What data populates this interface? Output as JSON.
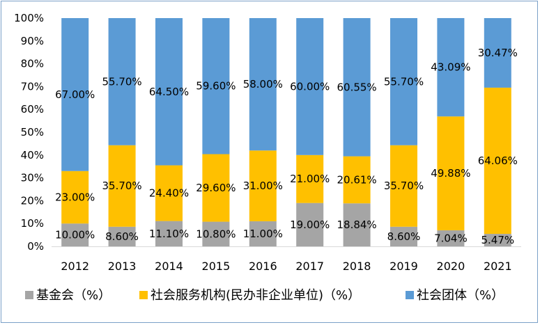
{
  "chart_data": {
    "type": "bar",
    "stacked": true,
    "percent_stacked": true,
    "categories": [
      "2012",
      "2013",
      "2014",
      "2015",
      "2016",
      "2017",
      "2018",
      "2019",
      "2020",
      "2021"
    ],
    "series": [
      {
        "name": "基金会（%）",
        "color": "#a5a5a5",
        "values": [
          10.0,
          8.6,
          11.1,
          10.8,
          11.0,
          19.0,
          18.84,
          8.6,
          7.04,
          5.47
        ],
        "labels": [
          "10.00%",
          "8.60%",
          "11.10%",
          "10.80%",
          "11.00%",
          "19.00%",
          "18.84%",
          "8.60%",
          "7.04%",
          "5.47%"
        ]
      },
      {
        "name": "社会服务机构(民办非企业单位)（%）",
        "color": "#ffc000",
        "values": [
          23.0,
          35.7,
          24.4,
          29.6,
          31.0,
          21.0,
          20.61,
          35.7,
          49.88,
          64.06
        ],
        "labels": [
          "23.00%",
          "35.70%",
          "24.40%",
          "29.60%",
          "31.00%",
          "21.00%",
          "20.61%",
          "35.70%",
          "49.88%",
          "64.06%"
        ]
      },
      {
        "name": "社会团体（%）",
        "color": "#5b9bd5",
        "values": [
          67.0,
          55.7,
          64.5,
          59.6,
          58.0,
          60.0,
          60.55,
          55.7,
          43.09,
          30.47
        ],
        "labels": [
          "67.00%",
          "55.70%",
          "64.50%",
          "59.60%",
          "58.00%",
          "60.00%",
          "60.55%",
          "55.70%",
          "43.09%",
          "30.47%"
        ]
      }
    ],
    "yticks": [
      "0%",
      "10%",
      "20%",
      "30%",
      "40%",
      "50%",
      "60%",
      "70%",
      "80%",
      "90%",
      "100%"
    ],
    "ylim": [
      0,
      100
    ],
    "grid": false,
    "legend_position": "bottom"
  }
}
